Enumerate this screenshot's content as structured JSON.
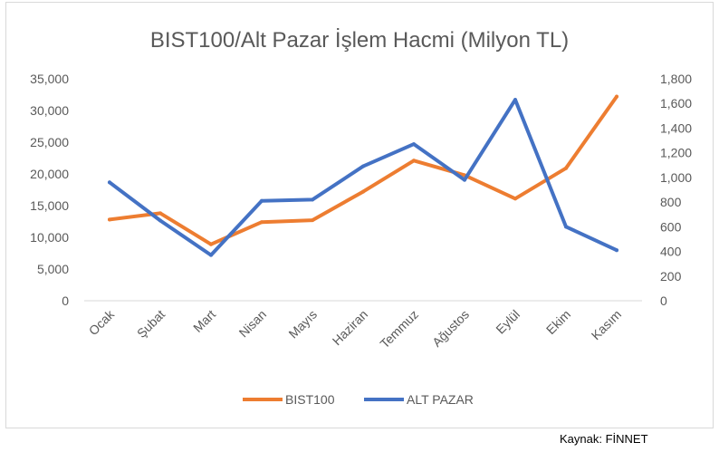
{
  "chart_data": {
    "type": "line",
    "title": "BIST100/Alt Pazar İşlem Hacmi (Milyon TL)",
    "categories": [
      "Ocak",
      "Şubat",
      "Mart",
      "Nisan",
      "Mayıs",
      "Haziran",
      "Temmuz",
      "Ağustos",
      "Eylül",
      "Ekim",
      "Kasım"
    ],
    "series": [
      {
        "name": "BIST100",
        "axis": "left",
        "color": "#ED7D31",
        "values": [
          12800,
          13800,
          8900,
          12400,
          12700,
          17200,
          22100,
          19800,
          16100,
          20900,
          32200
        ]
      },
      {
        "name": "ALT PAZAR",
        "axis": "right",
        "color": "#4472C4",
        "values": [
          960,
          650,
          370,
          810,
          820,
          1090,
          1270,
          980,
          1630,
          600,
          410
        ]
      }
    ],
    "y_left": {
      "min": 0,
      "max": 35000,
      "tick_labels": [
        "0",
        "5,000",
        "10,000",
        "15,000",
        "20,000",
        "25,000",
        "30,000",
        "35,000"
      ]
    },
    "y_right": {
      "min": 0,
      "max": 1800,
      "tick_labels": [
        "0",
        "200",
        "400",
        "600",
        "800",
        "1,000",
        "1,200",
        "1,400",
        "1,600",
        "1,800"
      ]
    },
    "grid": false,
    "legend": "bottom",
    "xlabel": "",
    "ylabel": ""
  },
  "source_note": "Kaynak: FİNNET"
}
